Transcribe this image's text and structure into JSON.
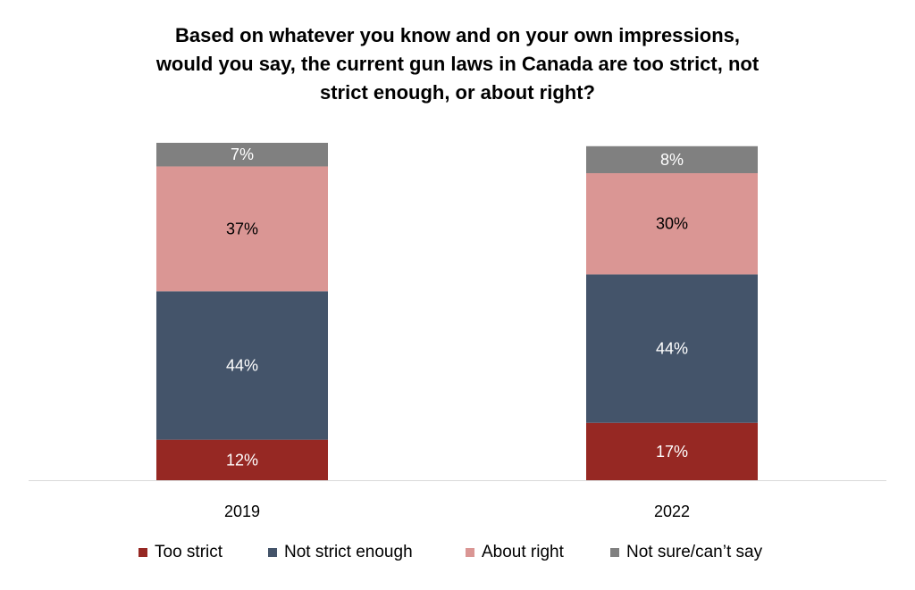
{
  "chart_data": {
    "type": "bar",
    "stacked": true,
    "title_lines": [
      "Based on whatever you know and on your own impressions,",
      "would you say, the current gun laws in Canada are too strict, not",
      "strict enough, or about right?"
    ],
    "categories": [
      "2019",
      "2022"
    ],
    "series": [
      {
        "name": "Too strict",
        "values": [
          12,
          17
        ],
        "labels": [
          "12%",
          "17%"
        ],
        "color": "#962823",
        "label_color": "#ffffff"
      },
      {
        "name": "Not strict enough",
        "values": [
          44,
          44
        ],
        "labels": [
          "44%",
          "44%"
        ],
        "color": "#44546a",
        "label_color": "#ffffff"
      },
      {
        "name": "About right",
        "values": [
          37,
          30
        ],
        "labels": [
          "37%",
          "30%"
        ],
        "color": "#da9694",
        "label_color": "#000000"
      },
      {
        "name": "Not sure/can’t say",
        "values": [
          7,
          8
        ],
        "labels": [
          "7%",
          "8%"
        ],
        "color": "#808080",
        "label_color": "#ffffff"
      }
    ],
    "ylim": [
      0,
      100
    ],
    "grid": false,
    "legend_position": "bottom"
  }
}
